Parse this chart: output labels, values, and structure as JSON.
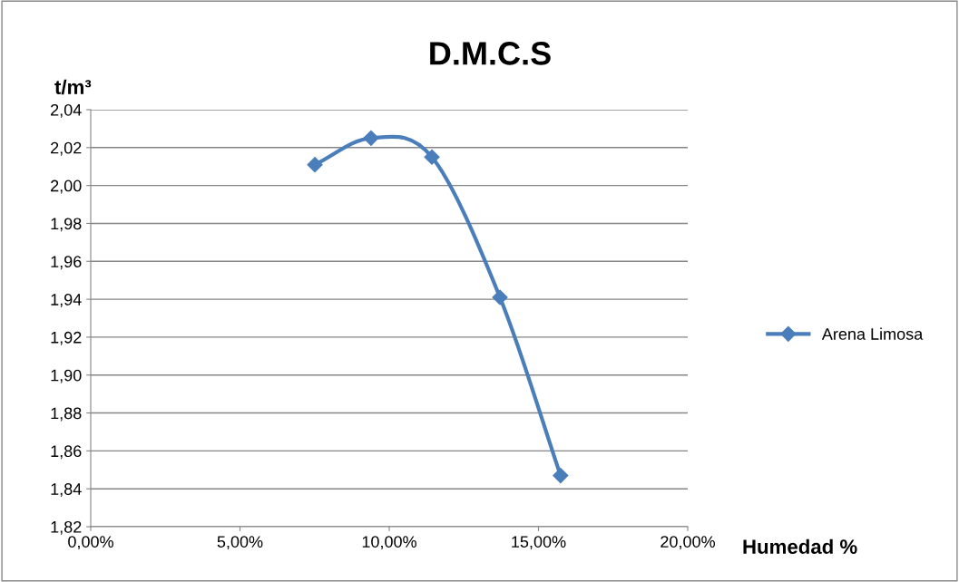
{
  "chart_data": {
    "type": "line",
    "title": "D.M.C.S",
    "xlabel": "Humedad %",
    "ylabel": "t/m³",
    "x": [
      7.51,
      9.39,
      11.43,
      13.71,
      15.74
    ],
    "series": [
      {
        "name": "Arena Limosa",
        "color": "#4a7ebb",
        "values": [
          2.011,
          2.025,
          2.015,
          1.941,
          1.847
        ]
      }
    ],
    "xlim": [
      0,
      20
    ],
    "xticks": [
      {
        "value": 0,
        "label": "0,00%"
      },
      {
        "value": 5,
        "label": "5,00%"
      },
      {
        "value": 10,
        "label": "10,00%"
      },
      {
        "value": 15,
        "label": "15,00%"
      },
      {
        "value": 20,
        "label": "20,00%"
      }
    ],
    "ylim": [
      1.82,
      2.04
    ],
    "yticks": [
      {
        "value": 1.82,
        "label": "1,82"
      },
      {
        "value": 1.84,
        "label": "1,84"
      },
      {
        "value": 1.86,
        "label": "1,86"
      },
      {
        "value": 1.88,
        "label": "1,88"
      },
      {
        "value": 1.9,
        "label": "1,90"
      },
      {
        "value": 1.92,
        "label": "1,92"
      },
      {
        "value": 1.94,
        "label": "1,94"
      },
      {
        "value": 1.96,
        "label": "1,96"
      },
      {
        "value": 1.98,
        "label": "1,98"
      },
      {
        "value": 2.0,
        "label": "2,00"
      },
      {
        "value": 2.02,
        "label": "2,02"
      },
      {
        "value": 2.04,
        "label": "2,04"
      }
    ],
    "grid": "y",
    "legend": "right",
    "marker": "diamond",
    "line_style": "solid"
  }
}
